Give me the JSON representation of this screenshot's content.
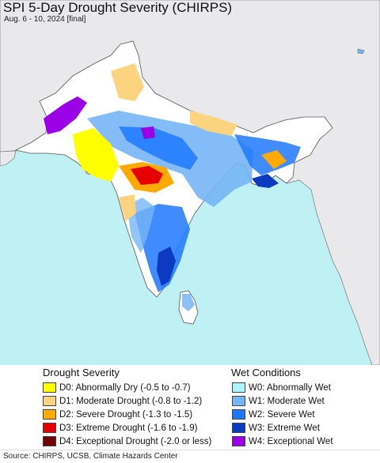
{
  "header": {
    "title": "SPI 5-Day Drought Severity (CHIRPS)",
    "subtitle": "Aug. 6 - 10, 2024 [final]"
  },
  "map": {
    "ocean_color": "#bff0f4",
    "land_color": "#e9e9ec",
    "region_color": "#ffffff"
  },
  "legend": {
    "drought_heading": "Drought Severity",
    "wet_heading": "Wet Conditions",
    "drought": [
      {
        "label": "D0: Abnormally Dry (-0.5 to -0.7)",
        "color": "#ffff00"
      },
      {
        "label": "D1: Moderate Drought (-0.8 to -1.2)",
        "color": "#fcd37f"
      },
      {
        "label": "D2: Severe Drought (-1.3 to -1.5)",
        "color": "#ffaa00"
      },
      {
        "label": "D3: Extreme Drought (-1.6 to -1.9)",
        "color": "#e60000"
      },
      {
        "label": "D4: Exceptional Drought (-2.0 or less)",
        "color": "#730000"
      }
    ],
    "wet": [
      {
        "label": "W0: Abnormally Wet",
        "color": "#aaf5ff"
      },
      {
        "label": "W1: Moderate Wet",
        "color": "#76b5f5"
      },
      {
        "label": "W2: Severe Wet",
        "color": "#1e78ff"
      },
      {
        "label": "W3: Extreme Wet",
        "color": "#0c3ac1"
      },
      {
        "label": "W4: Exceptional Wet",
        "color": "#9a00e6"
      }
    ]
  },
  "footer": {
    "source": "Source: CHIRPS, UCSB, Climate Hazards Center"
  }
}
